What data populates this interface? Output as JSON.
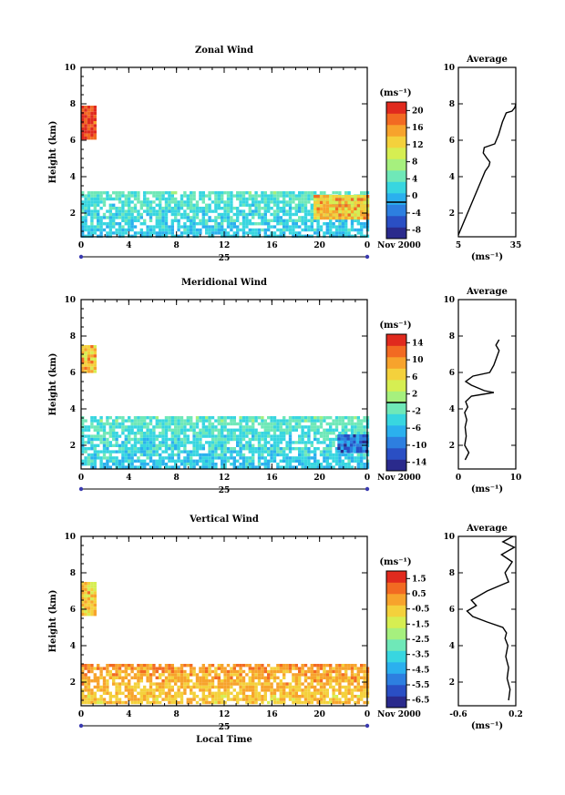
{
  "figure": {
    "x_axis_label": "Local Time",
    "date_label": "Nov 2000",
    "day_label": "25",
    "colorbar_unit": "(ms⁻¹)",
    "avg_unit": "(ms⁻¹)",
    "avg_title": "Average",
    "height_label": "Height (km)"
  },
  "colormap": [
    "#2a2a8c",
    "#2a4fc4",
    "#2d7fe0",
    "#2bb0ee",
    "#38d6e0",
    "#6fe8b8",
    "#a6f07e",
    "#d6ee52",
    "#f4d13c",
    "#f7a32c",
    "#f26a22",
    "#e02a1e"
  ],
  "chart_data": [
    {
      "type": "heatmap",
      "id": "zonal",
      "title": "Zonal Wind",
      "xlabel": "",
      "ylabel": "Height (km)",
      "xlim": [
        0,
        24
      ],
      "ylim": [
        0.7,
        10
      ],
      "xticks": [
        "0",
        "4",
        "8",
        "12",
        "16",
        "20",
        "0"
      ],
      "yticks": [
        2,
        4,
        6,
        8,
        10
      ],
      "colorbar": {
        "min": -8,
        "max": 22,
        "ticks": [
          "-8",
          "-4",
          "0",
          "4",
          "8",
          "12",
          "16",
          "20"
        ],
        "zero_line": 0
      },
      "description_regions": [
        {
          "x": [
            0,
            1.2
          ],
          "y": [
            6.1,
            7.9
          ],
          "value": 20
        },
        {
          "x": [
            0,
            24
          ],
          "y": [
            0.8,
            3.2
          ],
          "value": 5
        },
        {
          "x": [
            19.5,
            24
          ],
          "y": [
            1.8,
            3.0
          ],
          "value": 14
        }
      ],
      "profile": {
        "xlim": [
          5,
          35
        ],
        "xticks": [
          "5",
          "35"
        ],
        "yticks": [
          2,
          4,
          6,
          8,
          10
        ],
        "x": [
          5,
          7,
          9,
          11,
          13,
          15,
          17,
          19,
          21,
          21.5,
          20,
          18,
          18.5,
          24,
          26,
          28,
          30,
          33,
          34.5,
          35
        ],
        "y": [
          0.8,
          1.3,
          1.8,
          2.3,
          2.8,
          3.3,
          3.8,
          4.3,
          4.6,
          4.8,
          5.0,
          5.3,
          5.6,
          5.8,
          6.3,
          7.0,
          7.5,
          7.6,
          7.8,
          8.0
        ]
      }
    },
    {
      "type": "heatmap",
      "id": "meridional",
      "title": "Meridional Wind",
      "xlabel": "",
      "ylabel": "Height (km)",
      "xlim": [
        0,
        24
      ],
      "ylim": [
        0.7,
        10
      ],
      "xticks": [
        "0",
        "4",
        "8",
        "12",
        "16",
        "20",
        "0"
      ],
      "yticks": [
        2,
        4,
        6,
        8,
        10
      ],
      "colorbar": {
        "min": -16,
        "max": 16,
        "ticks": [
          "-14",
          "-10",
          "-6",
          "-2",
          "2",
          "6",
          "10",
          "14"
        ],
        "zero_line": 0
      },
      "description_regions": [
        {
          "x": [
            0,
            1.2
          ],
          "y": [
            6.0,
            7.5
          ],
          "value": 8
        },
        {
          "x": [
            0,
            24
          ],
          "y": [
            0.8,
            3.6
          ],
          "value": -2
        },
        {
          "x": [
            21.5,
            24
          ],
          "y": [
            1.6,
            2.6
          ],
          "value": -10
        }
      ],
      "profile": {
        "xlim": [
          -1,
          10
        ],
        "xticks": [
          "0",
          "10"
        ],
        "yticks": [
          2,
          4,
          6,
          8,
          10
        ],
        "x": [
          0.3,
          1.0,
          0.2,
          0.5,
          0.3,
          0.6,
          0.2,
          0.8,
          0.4,
          1.5,
          5.8,
          4.0,
          1.5,
          0.4,
          1.8,
          5.0,
          5.8,
          6.3,
          6.8,
          6.2,
          6.8
        ],
        "y": [
          1.2,
          1.6,
          2.0,
          2.5,
          3.0,
          3.4,
          3.8,
          4.1,
          4.4,
          4.7,
          4.9,
          5.0,
          5.3,
          5.5,
          5.8,
          6.0,
          6.4,
          6.8,
          7.2,
          7.5,
          7.8
        ]
      }
    },
    {
      "type": "heatmap",
      "id": "vertical",
      "title": "Vertical Wind",
      "xlabel": "Local Time",
      "ylabel": "Height (km)",
      "xlim": [
        0,
        24
      ],
      "ylim": [
        0.7,
        10
      ],
      "xticks": [
        "0",
        "4",
        "8",
        "12",
        "16",
        "20",
        "0"
      ],
      "yticks": [
        2,
        4,
        6,
        8,
        10
      ],
      "colorbar": {
        "min": -7,
        "max": 2,
        "ticks": [
          "-6.5",
          "-5.5",
          "-4.5",
          "-3.5",
          "-2.5",
          "-1.5",
          "-0.5",
          "0.5",
          "1.5"
        ],
        "zero_line": null
      },
      "description_regions": [
        {
          "x": [
            0,
            1.2
          ],
          "y": [
            5.8,
            7.5
          ],
          "value": -0.6
        },
        {
          "x": [
            0,
            24
          ],
          "y": [
            0.8,
            3.0
          ],
          "value": 0.3
        }
      ],
      "profile": {
        "xlim": [
          -0.6,
          0.2
        ],
        "xticks": [
          "-0.6",
          "0.2"
        ],
        "yticks": [
          2,
          4,
          6,
          8,
          10
        ],
        "x": [
          0.1,
          0.12,
          0.08,
          0.1,
          0.06,
          0.09,
          0.05,
          0.07,
          0.02,
          -0.2,
          -0.4,
          -0.48,
          -0.35,
          -0.42,
          -0.2,
          0.1,
          0.05,
          0.15,
          0.0,
          0.18,
          0.02,
          0.16
        ],
        "y": [
          1.0,
          1.6,
          2.2,
          2.8,
          3.4,
          4.0,
          4.4,
          4.7,
          5.0,
          5.3,
          5.6,
          5.9,
          6.2,
          6.5,
          7.0,
          7.5,
          8.0,
          8.6,
          9.0,
          9.4,
          9.7,
          10.0
        ]
      }
    }
  ]
}
